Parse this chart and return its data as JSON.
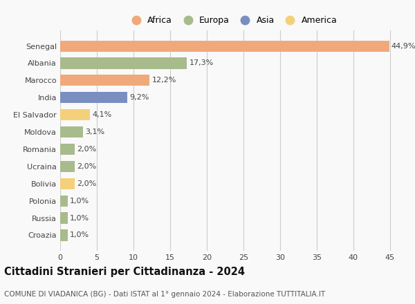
{
  "countries": [
    "Senegal",
    "Albania",
    "Marocco",
    "India",
    "El Salvador",
    "Moldova",
    "Romania",
    "Ucraina",
    "Bolivia",
    "Polonia",
    "Russia",
    "Croazia"
  ],
  "values": [
    44.9,
    17.3,
    12.2,
    9.2,
    4.1,
    3.1,
    2.0,
    2.0,
    2.0,
    1.0,
    1.0,
    1.0
  ],
  "labels": [
    "44,9%",
    "17,3%",
    "12,2%",
    "9,2%",
    "4,1%",
    "3,1%",
    "2,0%",
    "2,0%",
    "2,0%",
    "1,0%",
    "1,0%",
    "1,0%"
  ],
  "colors": [
    "#F0A97A",
    "#A8BB8C",
    "#F0A97A",
    "#7A8FBF",
    "#F5D07A",
    "#A8BB8C",
    "#A8BB8C",
    "#A8BB8C",
    "#F5D07A",
    "#A8BB8C",
    "#A8BB8C",
    "#A8BB8C"
  ],
  "legend": [
    {
      "label": "Africa",
      "color": "#F0A97A"
    },
    {
      "label": "Europa",
      "color": "#A8BB8C"
    },
    {
      "label": "Asia",
      "color": "#7A8FBF"
    },
    {
      "label": "America",
      "color": "#F5D07A"
    }
  ],
  "title": "Cittadini Stranieri per Cittadinanza - 2024",
  "subtitle": "COMUNE DI VIADANICA (BG) - Dati ISTAT al 1° gennaio 2024 - Elaborazione TUTTITALIA.IT",
  "xlim": [
    0,
    47
  ],
  "xticks": [
    0,
    5,
    10,
    15,
    20,
    25,
    30,
    35,
    40,
    45
  ],
  "background_color": "#f9f9f9",
  "grid_color": "#cccccc",
  "bar_height": 0.65,
  "label_fontsize": 8,
  "tick_fontsize": 8,
  "title_fontsize": 10.5,
  "subtitle_fontsize": 7.5
}
